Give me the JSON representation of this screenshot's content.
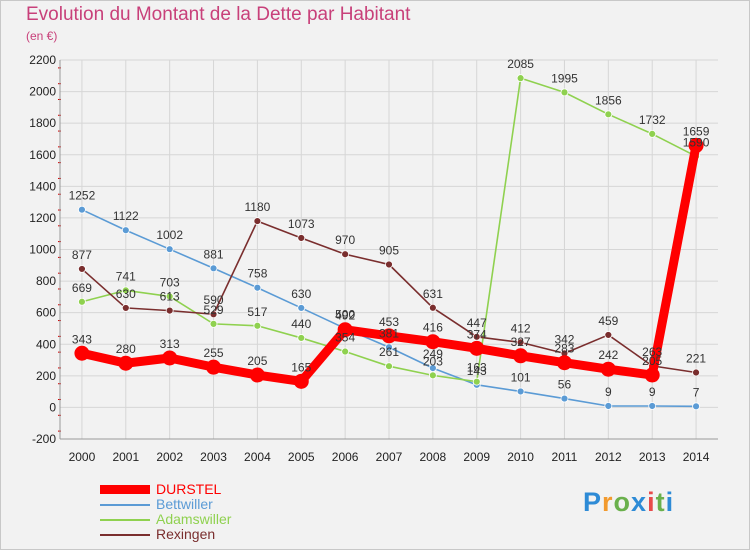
{
  "header": {
    "title": "Evolution du Montant de la Dette par Habitant",
    "unit": "(en €)"
  },
  "brand": {
    "name": "Proxiti",
    "colors": [
      "#2e8bd6",
      "#f29a2e",
      "#6ab04c",
      "#2e8bd6",
      "#e84a4a",
      "#6ab04c",
      "#2e8bd6"
    ]
  },
  "chart_data": {
    "type": "line",
    "title": "Evolution du Montant de la Dette par Habitant",
    "subtitle": "(en €)",
    "xlabel": "",
    "ylabel": "",
    "x": [
      "2000",
      "2001",
      "2002",
      "2003",
      "2004",
      "2005",
      "2006",
      "2007",
      "2008",
      "2009",
      "2010",
      "2011",
      "2012",
      "2013",
      "2014"
    ],
    "ylim": [
      -200,
      2200
    ],
    "yticks": [
      "-200",
      "0",
      "200",
      "400",
      "600",
      "800",
      "1000",
      "1200",
      "1400",
      "1600",
      "1800",
      "2000",
      "2200"
    ],
    "grid": true,
    "legend_position": "bottom-left",
    "series": [
      {
        "name": "DURSTEL",
        "color": "#ff0000",
        "values": [
          343,
          280,
          313,
          255,
          205,
          165,
          492,
          453,
          416,
          374,
          327,
          283,
          242,
          205,
          1659
        ],
        "labels": [
          "343",
          "280",
          "313",
          "255",
          "205",
          "165",
          "492",
          "453",
          "416",
          "374",
          "327",
          "283",
          "242",
          "205",
          "1659"
        ]
      },
      {
        "name": "Bettwiller",
        "color": "#5b9bd5",
        "values": [
          1252,
          1122,
          1002,
          881,
          758,
          630,
          500,
          381,
          249,
          143,
          101,
          56,
          9,
          9,
          7
        ],
        "labels": [
          "1252",
          "1122",
          "1002",
          "881",
          "758",
          "630",
          "500",
          "381",
          "249",
          "143",
          "101",
          "56",
          "9",
          "9",
          "7"
        ]
      },
      {
        "name": "Adamswiller",
        "color": "#8fd14f",
        "values": [
          669,
          741,
          703,
          529,
          517,
          440,
          354,
          261,
          203,
          163,
          2085,
          1995,
          1856,
          1732,
          1590
        ],
        "labels": [
          "669",
          "741",
          "703",
          "529",
          "517",
          "440",
          "354",
          "261",
          "203",
          "163",
          "2085",
          "1995",
          "1856",
          "1732",
          "1590"
        ]
      },
      {
        "name": "Rexingen",
        "color": "#7a2e2e",
        "values": [
          877,
          630,
          613,
          590,
          1180,
          1073,
          970,
          905,
          631,
          447,
          412,
          342,
          459,
          263,
          221
        ],
        "labels": [
          "877",
          "630",
          "613",
          "590",
          "1180",
          "1073",
          "970",
          "905",
          "631",
          "447",
          "412",
          "342",
          "459",
          "263",
          "221"
        ]
      }
    ]
  }
}
